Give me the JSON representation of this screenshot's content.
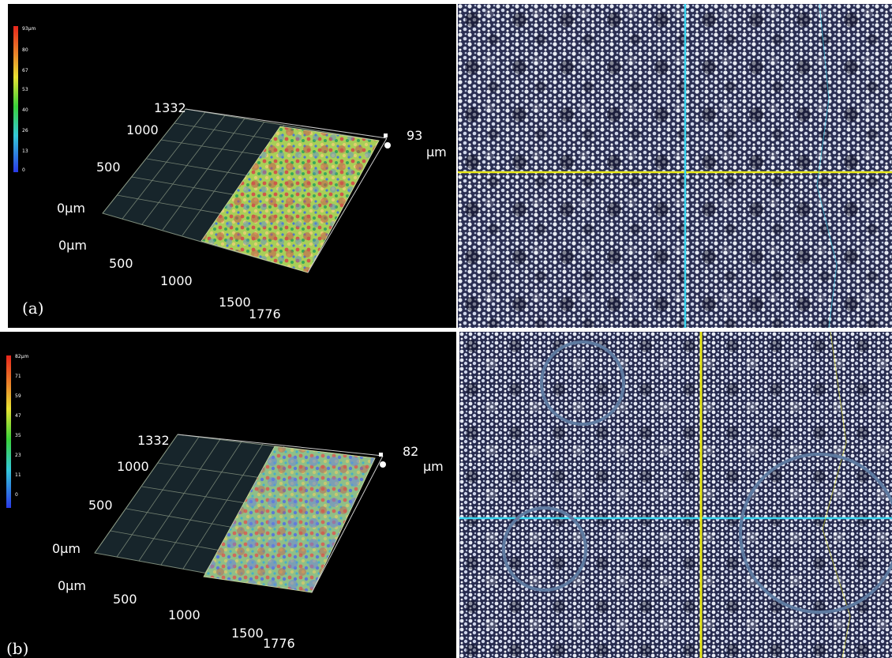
{
  "panels": {
    "a": {
      "label": "(a)",
      "scale_ticks": [
        "93µm",
        "80",
        "67",
        "53",
        "40",
        "26",
        "13",
        "0"
      ],
      "y_ticks": [
        "1332",
        "1000",
        "500",
        "0µm"
      ],
      "x_ticks": [
        "0µm",
        "500",
        "1000",
        "1500",
        "1776"
      ],
      "z_value": "93",
      "z_unit": "µm",
      "crosshair_h_color": "#e8e818",
      "crosshair_v_color": "#36d6f0"
    },
    "b": {
      "label": "(b)",
      "scale_ticks": [
        "82µm",
        "71",
        "59",
        "47",
        "35",
        "23",
        "11",
        "0"
      ],
      "y_ticks": [
        "1332",
        "1000",
        "500",
        "0µm"
      ],
      "x_ticks": [
        "0µm",
        "500",
        "1000",
        "1500",
        "1776"
      ],
      "z_value": "82",
      "z_unit": "µm",
      "crosshair_h_color": "#36d6f0",
      "crosshair_v_color": "#e8e818",
      "circle_color": "#5e7aa0"
    }
  }
}
